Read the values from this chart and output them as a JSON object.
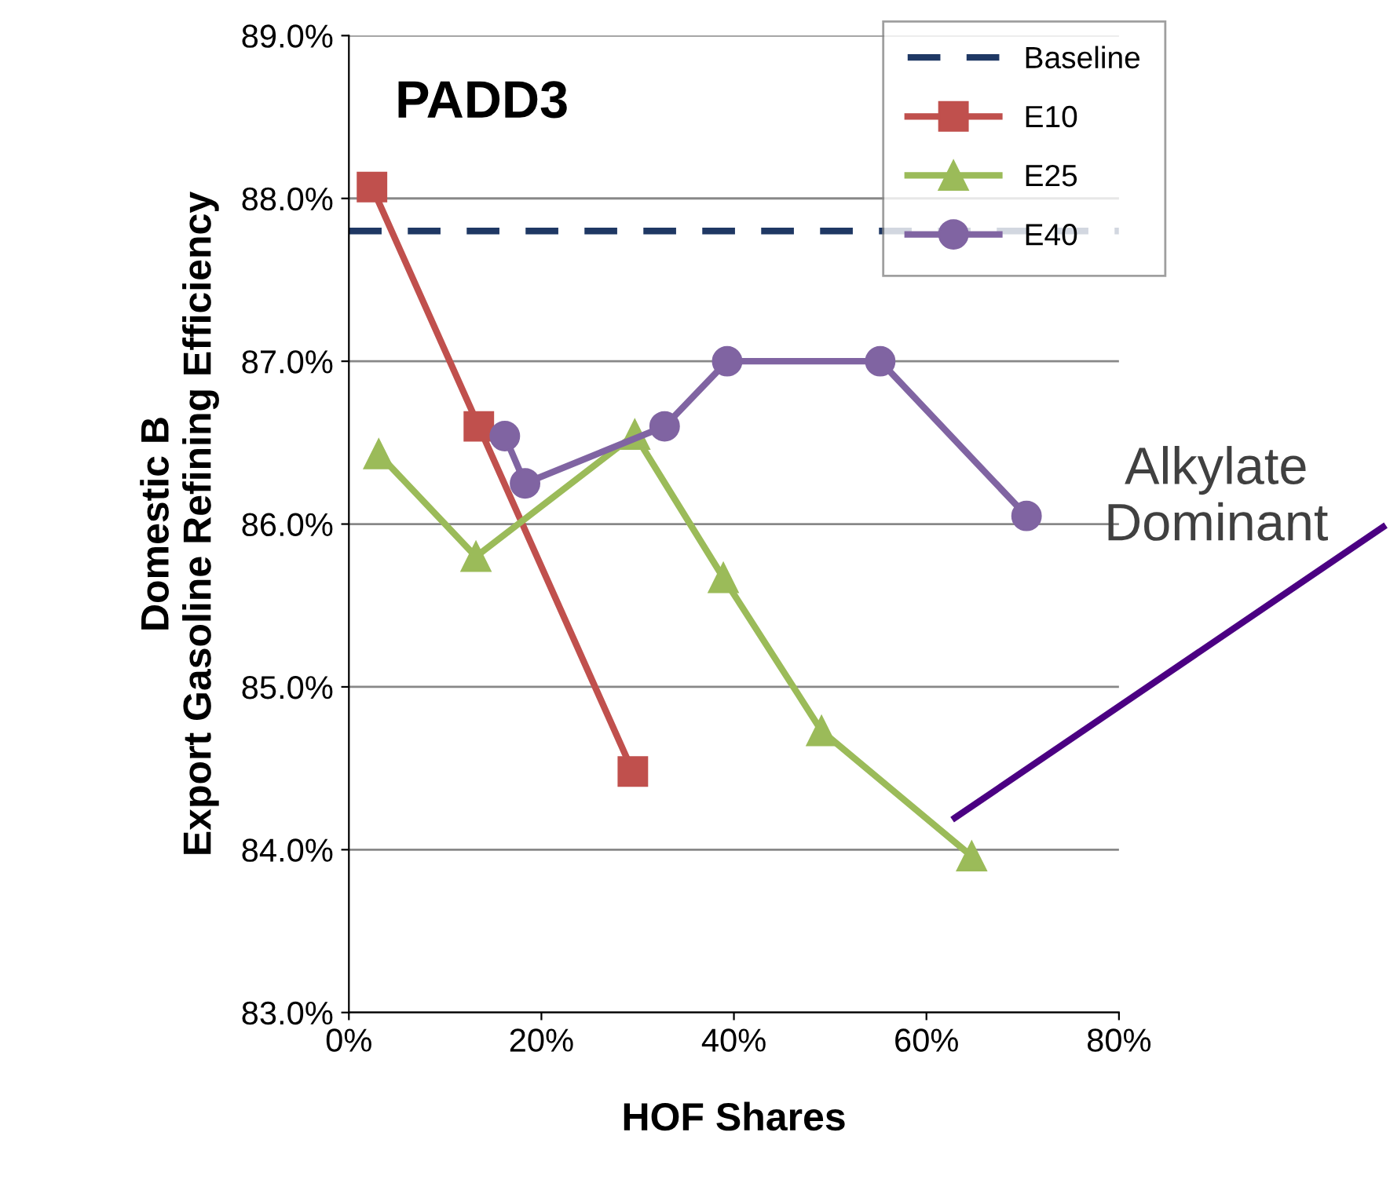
{
  "chart_data": {
    "type": "line",
    "title": "PADD3",
    "xlabel": "HOF Shares",
    "ylabel": "Domestic B\nExport Gasoline Refining Efficiency",
    "series": [
      {
        "name": "E10",
        "color": "#c0504d",
        "marker": "square",
        "x": [
          2.4,
          13.5,
          29.5
        ],
        "values": [
          88.07,
          86.6,
          84.48
        ]
      },
      {
        "name": "E25",
        "color": "#9bbb59",
        "marker": "triangle",
        "x": [
          3.1,
          13.2,
          29.7,
          38.9,
          49.1,
          64.7
        ],
        "values": [
          86.43,
          85.8,
          86.55,
          85.67,
          84.73,
          83.96
        ]
      },
      {
        "name": "E40",
        "color": "#8064a2",
        "marker": "circle",
        "x": [
          16.2,
          18.3,
          32.8,
          39.3,
          55.2,
          70.4
        ],
        "values": [
          86.54,
          86.25,
          86.6,
          87.0,
          87.0,
          86.05
        ]
      }
    ],
    "ref_lines": [
      {
        "axis": "y",
        "value": 87.8,
        "label": "Baseline",
        "color": "#1f3864",
        "line_style": "dashed"
      }
    ],
    "annotations": [
      "Alkylate\nDominant"
    ],
    "xlim": [
      0,
      80
    ],
    "xticks": [
      {
        "value": 0,
        "label": "0%"
      },
      {
        "value": 20,
        "label": "20%"
      },
      {
        "value": 40,
        "label": "40%"
      },
      {
        "value": 60,
        "label": "60%"
      },
      {
        "value": 80,
        "label": "80%"
      }
    ],
    "ylim": [
      83,
      89
    ],
    "yticks": [
      {
        "value": 83,
        "label": "83.0%"
      },
      {
        "value": 84,
        "label": "84.0%"
      },
      {
        "value": 85,
        "label": "85.0%"
      },
      {
        "value": 86,
        "label": "86.0%"
      },
      {
        "value": 87,
        "label": "87.0%"
      },
      {
        "value": 88,
        "label": "88.0%"
      },
      {
        "value": 89,
        "label": "89.0%"
      }
    ],
    "grid": "y",
    "legend": "top right"
  }
}
